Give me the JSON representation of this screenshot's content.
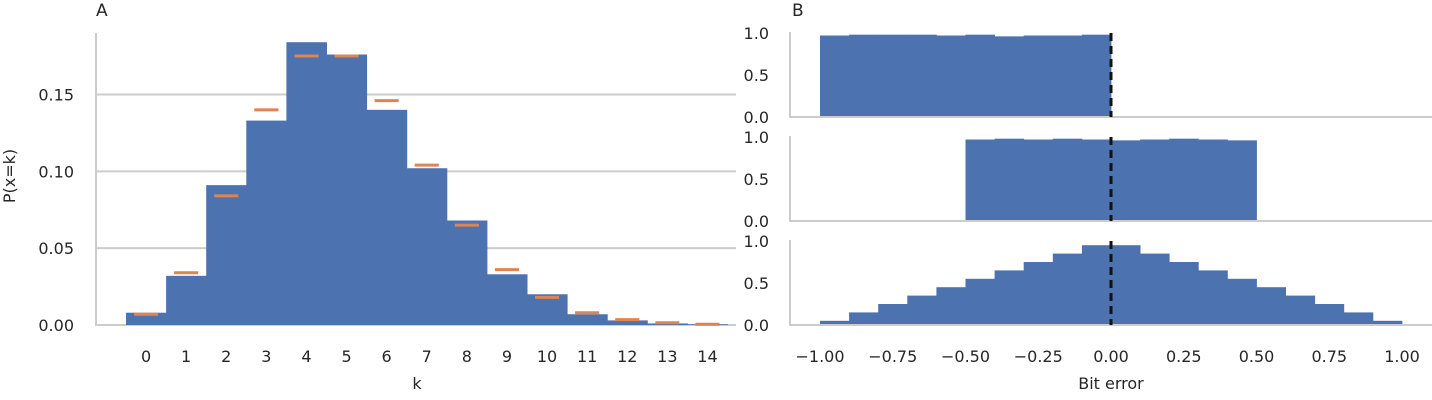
{
  "chart_data": [
    {
      "panel_label": "A",
      "type": "bar",
      "xlabel": "k",
      "ylabel": "P(x=k)",
      "ylim": [
        0,
        0.19
      ],
      "yticks": [
        "0.00",
        "0.05",
        "0.10",
        "0.15"
      ],
      "grid": "horizontal",
      "categories": [
        "0",
        "1",
        "2",
        "3",
        "4",
        "5",
        "6",
        "7",
        "8",
        "9",
        "10",
        "11",
        "12",
        "13",
        "14"
      ],
      "series": [
        {
          "kind": "bar",
          "color": "#4c72b0",
          "values": [
            0.008,
            0.032,
            0.091,
            0.133,
            0.184,
            0.176,
            0.14,
            0.102,
            0.068,
            0.033,
            0.02,
            0.007,
            0.003,
            0.001,
            0.0005
          ]
        },
        {
          "kind": "marker",
          "color": "#dd8452",
          "values": [
            0.007,
            0.034,
            0.084,
            0.14,
            0.175,
            0.175,
            0.146,
            0.104,
            0.065,
            0.036,
            0.018,
            0.008,
            0.0035,
            0.0015,
            0.0005
          ]
        }
      ]
    },
    {
      "panel_label": "B",
      "type": "bar",
      "xlabel": "",
      "ylim": [
        0,
        1.05
      ],
      "yticks": [
        "0.0",
        "0.5",
        "1.0"
      ],
      "xlim": [
        -1.05,
        1.05
      ],
      "bin_width": 0.1,
      "bin_starts": [
        -1.0,
        -0.9,
        -0.8,
        -0.7,
        -0.6,
        -0.5,
        -0.4,
        -0.3,
        -0.2,
        -0.1
      ],
      "values": [
        0.97,
        0.98,
        0.98,
        0.98,
        0.97,
        0.98,
        0.96,
        0.97,
        0.97,
        0.98
      ],
      "vline_x": 0.0,
      "color": "#4c72b0"
    },
    {
      "panel_label": "",
      "type": "bar",
      "xlabel": "",
      "ylim": [
        0,
        1.05
      ],
      "yticks": [
        "0.0",
        "0.5",
        "1.0"
      ],
      "xlim": [
        -1.05,
        1.05
      ],
      "bin_width": 0.1,
      "bin_starts": [
        -0.5,
        -0.4,
        -0.3,
        -0.2,
        -0.1,
        0.0,
        0.1,
        0.2,
        0.3,
        0.4
      ],
      "values": [
        0.97,
        0.98,
        0.97,
        0.98,
        0.97,
        0.96,
        0.97,
        0.98,
        0.97,
        0.96
      ],
      "vline_x": 0.0,
      "color": "#4c72b0"
    },
    {
      "panel_label": "",
      "type": "bar",
      "xlabel": "Bit error",
      "ylim": [
        0,
        1.05
      ],
      "yticks": [
        "0.0",
        "0.5",
        "1.0"
      ],
      "xlim": [
        -1.05,
        1.05
      ],
      "xticks": [
        "−1.00",
        "−0.75",
        "−0.50",
        "−0.25",
        "0.00",
        "0.25",
        "0.50",
        "0.75",
        "1.00"
      ],
      "xtick_values": [
        -1.0,
        -0.75,
        -0.5,
        -0.25,
        0.0,
        0.25,
        0.5,
        0.75,
        1.0
      ],
      "bin_width": 0.1,
      "bin_starts": [
        -1.0,
        -0.9,
        -0.8,
        -0.7,
        -0.6,
        -0.5,
        -0.4,
        -0.3,
        -0.2,
        -0.1,
        0.0,
        0.1,
        0.2,
        0.3,
        0.4,
        0.5,
        0.6,
        0.7,
        0.8,
        0.9
      ],
      "values": [
        0.05,
        0.15,
        0.25,
        0.35,
        0.45,
        0.55,
        0.65,
        0.75,
        0.85,
        0.95,
        0.95,
        0.85,
        0.75,
        0.65,
        0.55,
        0.45,
        0.35,
        0.25,
        0.15,
        0.05
      ],
      "vline_x": 0.0,
      "color": "#4c72b0"
    }
  ]
}
